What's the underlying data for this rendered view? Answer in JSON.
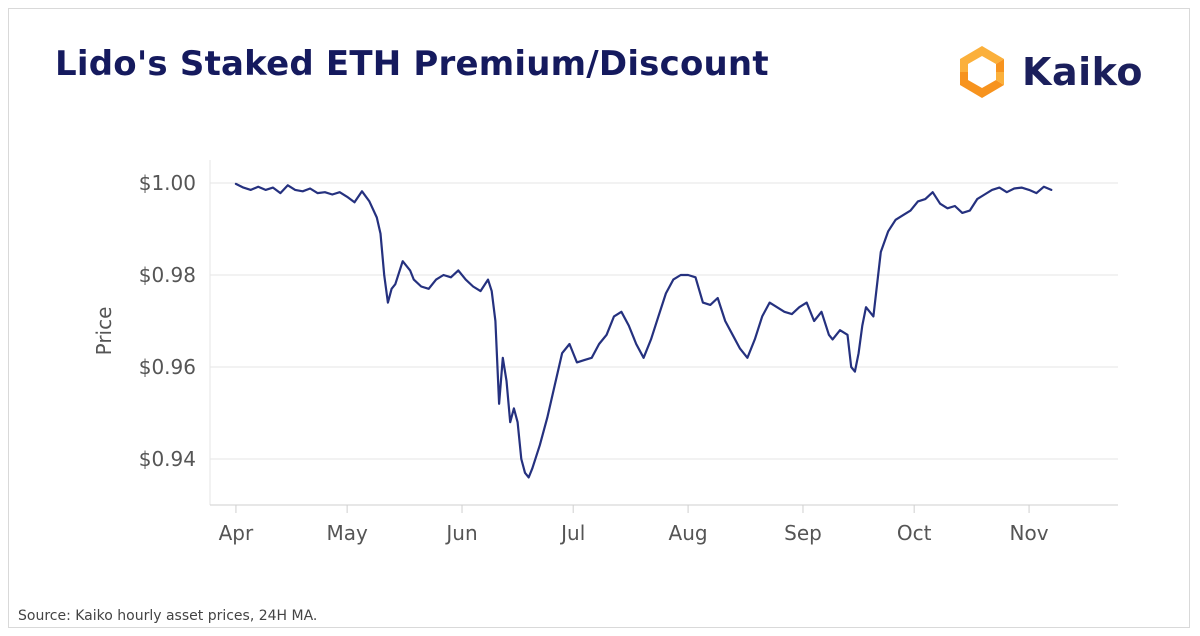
{
  "title": "Lido's Staked ETH Premium/Discount",
  "logo": {
    "text": "Kaiko",
    "icon": "kaiko-logo-icon"
  },
  "source": "Source: Kaiko hourly asset prices, 24H MA.",
  "colors": {
    "title": "#151a5e",
    "line": "#25317f",
    "grid": "#e6e6e6",
    "axis_text": "#555555",
    "logo_orange": "#f7931e",
    "logo_yellow": "#fbb03b"
  },
  "chart_data": {
    "type": "line",
    "title": "Lido's Staked ETH Premium/Discount",
    "xlabel": "",
    "ylabel": "Price",
    "x_type": "date",
    "xlim": [
      "2022-03-25",
      "2022-11-25"
    ],
    "ylim": [
      0.93,
      1.005
    ],
    "yticks": [
      0.94,
      0.96,
      0.98,
      1.0
    ],
    "ytick_labels": [
      "$0.94",
      "$0.96",
      "$0.98",
      "$1.00"
    ],
    "xticks": [
      "2022-04-01",
      "2022-05-01",
      "2022-06-01",
      "2022-07-01",
      "2022-08-01",
      "2022-09-01",
      "2022-10-01",
      "2022-11-01"
    ],
    "xtick_labels": [
      "Apr",
      "May",
      "Jun",
      "Jul",
      "Aug",
      "Sep",
      "Oct",
      "Nov"
    ],
    "grid": true,
    "legend": false,
    "series": [
      {
        "x": [
          "2022-04-01",
          "2022-04-03",
          "2022-04-05",
          "2022-04-07",
          "2022-04-09",
          "2022-04-11",
          "2022-04-13",
          "2022-04-15",
          "2022-04-17",
          "2022-04-19",
          "2022-04-21",
          "2022-04-23",
          "2022-04-25",
          "2022-04-27",
          "2022-04-29",
          "2022-05-01",
          "2022-05-03",
          "2022-05-05",
          "2022-05-07",
          "2022-05-09",
          "2022-05-10",
          "2022-05-11",
          "2022-05-12",
          "2022-05-13",
          "2022-05-14",
          "2022-05-16",
          "2022-05-18",
          "2022-05-19",
          "2022-05-21",
          "2022-05-23",
          "2022-05-25",
          "2022-05-27",
          "2022-05-29",
          "2022-05-31",
          "2022-06-02",
          "2022-06-04",
          "2022-06-06",
          "2022-06-08",
          "2022-06-09",
          "2022-06-10",
          "2022-06-11",
          "2022-06-12",
          "2022-06-13",
          "2022-06-14",
          "2022-06-15",
          "2022-06-16",
          "2022-06-17",
          "2022-06-18",
          "2022-06-19",
          "2022-06-20",
          "2022-06-22",
          "2022-06-24",
          "2022-06-26",
          "2022-06-28",
          "2022-06-30",
          "2022-07-02",
          "2022-07-04",
          "2022-07-06",
          "2022-07-08",
          "2022-07-10",
          "2022-07-12",
          "2022-07-14",
          "2022-07-16",
          "2022-07-18",
          "2022-07-20",
          "2022-07-22",
          "2022-07-24",
          "2022-07-26",
          "2022-07-28",
          "2022-07-30",
          "2022-08-01",
          "2022-08-03",
          "2022-08-05",
          "2022-08-07",
          "2022-08-09",
          "2022-08-11",
          "2022-08-13",
          "2022-08-15",
          "2022-08-17",
          "2022-08-19",
          "2022-08-21",
          "2022-08-23",
          "2022-08-25",
          "2022-08-27",
          "2022-08-29",
          "2022-08-31",
          "2022-09-02",
          "2022-09-04",
          "2022-09-06",
          "2022-09-08",
          "2022-09-09",
          "2022-09-11",
          "2022-09-13",
          "2022-09-14",
          "2022-09-15",
          "2022-09-16",
          "2022-09-17",
          "2022-09-18",
          "2022-09-20",
          "2022-09-22",
          "2022-09-24",
          "2022-09-26",
          "2022-09-28",
          "2022-09-30",
          "2022-10-02",
          "2022-10-04",
          "2022-10-06",
          "2022-10-08",
          "2022-10-10",
          "2022-10-12",
          "2022-10-14",
          "2022-10-16",
          "2022-10-18",
          "2022-10-20",
          "2022-10-22",
          "2022-10-24",
          "2022-10-26",
          "2022-10-28",
          "2022-10-30",
          "2022-11-01",
          "2022-11-03",
          "2022-11-05",
          "2022-11-07"
        ],
        "y": [
          0.9998,
          0.999,
          0.9985,
          0.9992,
          0.9985,
          0.999,
          0.9978,
          0.9995,
          0.9985,
          0.9982,
          0.9988,
          0.9978,
          0.998,
          0.9975,
          0.998,
          0.997,
          0.9958,
          0.9982,
          0.996,
          0.9925,
          0.989,
          0.98,
          0.974,
          0.977,
          0.978,
          0.983,
          0.981,
          0.979,
          0.9775,
          0.977,
          0.979,
          0.98,
          0.9795,
          0.981,
          0.979,
          0.9775,
          0.9765,
          0.979,
          0.9765,
          0.97,
          0.952,
          0.962,
          0.957,
          0.948,
          0.951,
          0.948,
          0.94,
          0.937,
          0.936,
          0.938,
          0.943,
          0.949,
          0.956,
          0.963,
          0.965,
          0.961,
          0.9615,
          0.962,
          0.965,
          0.967,
          0.971,
          0.972,
          0.969,
          0.965,
          0.962,
          0.966,
          0.971,
          0.976,
          0.979,
          0.98,
          0.98,
          0.9795,
          0.974,
          0.9735,
          0.975,
          0.97,
          0.967,
          0.964,
          0.962,
          0.966,
          0.971,
          0.974,
          0.973,
          0.972,
          0.9715,
          0.973,
          0.974,
          0.97,
          0.972,
          0.967,
          0.966,
          0.968,
          0.967,
          0.96,
          0.959,
          0.963,
          0.969,
          0.973,
          0.971,
          0.985,
          0.9895,
          0.992,
          0.993,
          0.994,
          0.996,
          0.9965,
          0.998,
          0.9955,
          0.9945,
          0.995,
          0.9935,
          0.994,
          0.9965,
          0.9975,
          0.9985,
          0.999,
          0.998,
          0.9988,
          0.999,
          0.9985,
          0.9978,
          0.9992,
          0.9985
        ]
      }
    ]
  }
}
